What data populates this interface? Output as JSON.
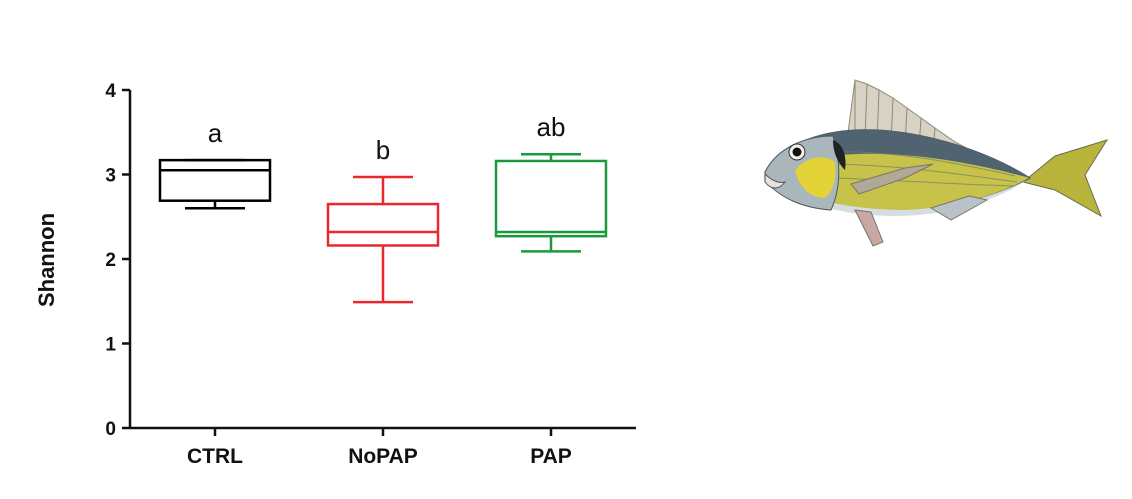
{
  "chart_data": {
    "type": "boxplot",
    "ylabel": "Shannon",
    "xlabel": "",
    "ylim": [
      0,
      4
    ],
    "yticks": [
      0,
      1,
      2,
      3,
      4
    ],
    "categories": [
      "CTRL",
      "NoPAP",
      "PAP"
    ],
    "boxes": [
      {
        "name": "CTRL",
        "min": 2.6,
        "q1": 2.69,
        "median": 3.05,
        "q3": 3.17,
        "max": 3.17,
        "color": "#000000",
        "letter": "a"
      },
      {
        "name": "NoPAP",
        "min": 1.49,
        "q1": 2.16,
        "median": 2.32,
        "q3": 2.65,
        "max": 2.97,
        "color": "#e8282d",
        "letter": "b"
      },
      {
        "name": "PAP",
        "min": 2.09,
        "q1": 2.27,
        "median": 2.32,
        "q3": 3.16,
        "max": 3.24,
        "color": "#1a9a3c",
        "letter": "ab"
      }
    ]
  },
  "illustration": {
    "name": "gilthead-seabream-fish",
    "colors": {
      "back": "#4f6470",
      "belly": "#d4dde2",
      "flank": "#c6c24a",
      "cheek": "#e3d338",
      "fin": "#b0a898",
      "tail": "#b9b43c"
    }
  }
}
